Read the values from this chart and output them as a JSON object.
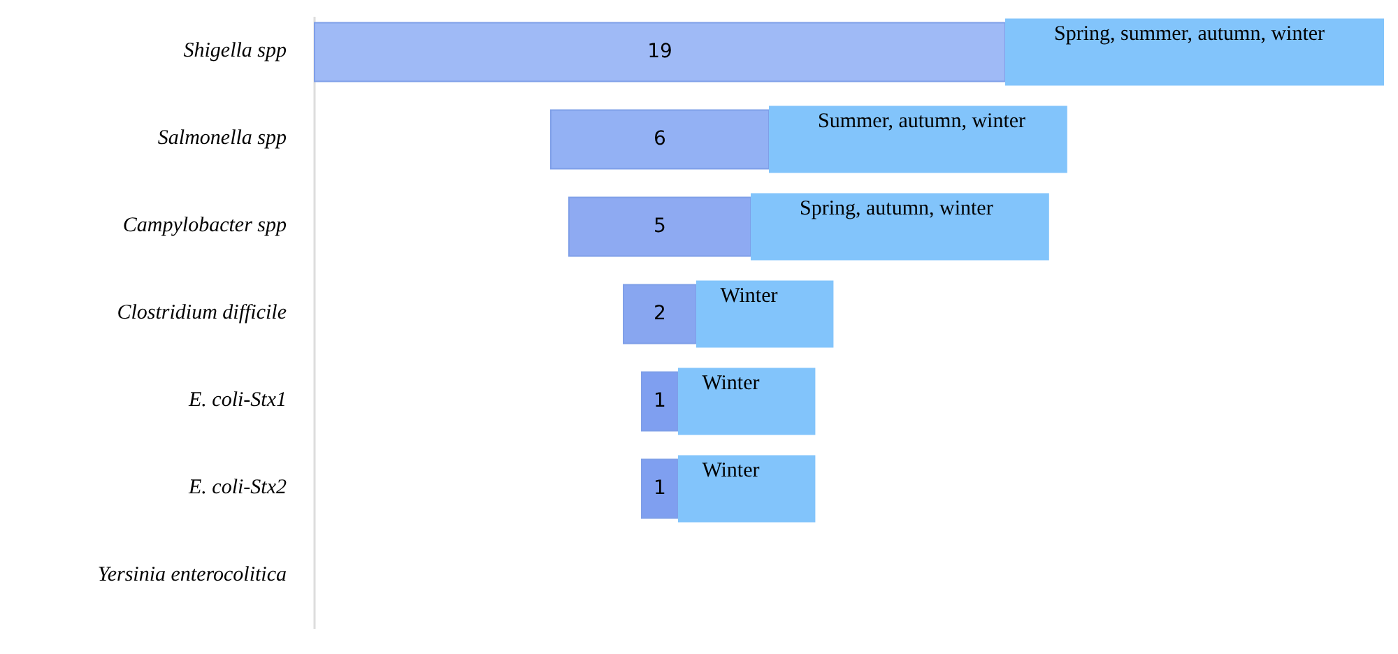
{
  "chart_data": {
    "type": "other",
    "categories": [
      "Shigella spp",
      "Salmonella spp",
      "Campylobacter spp",
      "Clostridium difficile",
      "E. coli-Stx1",
      "E. coli-Stx2",
      "Yersinia enterocolitica"
    ],
    "values": [
      19,
      6,
      5,
      2,
      1,
      1,
      null
    ],
    "colors": [
      "#9fbaf6",
      "#93b1f4",
      "#8eaaf2",
      "#88a6f0",
      "#7f9ff0",
      "#7f9ff0",
      null
    ],
    "data_labels": true,
    "annotations": [
      {
        "text": "Spring, summer, autumn, winter",
        "y": "Shigella spp"
      },
      {
        "text": "Summer, autumn, winter",
        "y": "Salmonella spp"
      },
      {
        "text": "Spring, autumn, winter",
        "y": "Campylobacter spp"
      },
      {
        "text": "Winter",
        "y": "Clostridium difficile"
      },
      {
        "text": "Winter",
        "y": "E. coli-Stx1"
      },
      {
        "text": "Winter",
        "y": "E. coli-Stx2"
      }
    ]
  }
}
